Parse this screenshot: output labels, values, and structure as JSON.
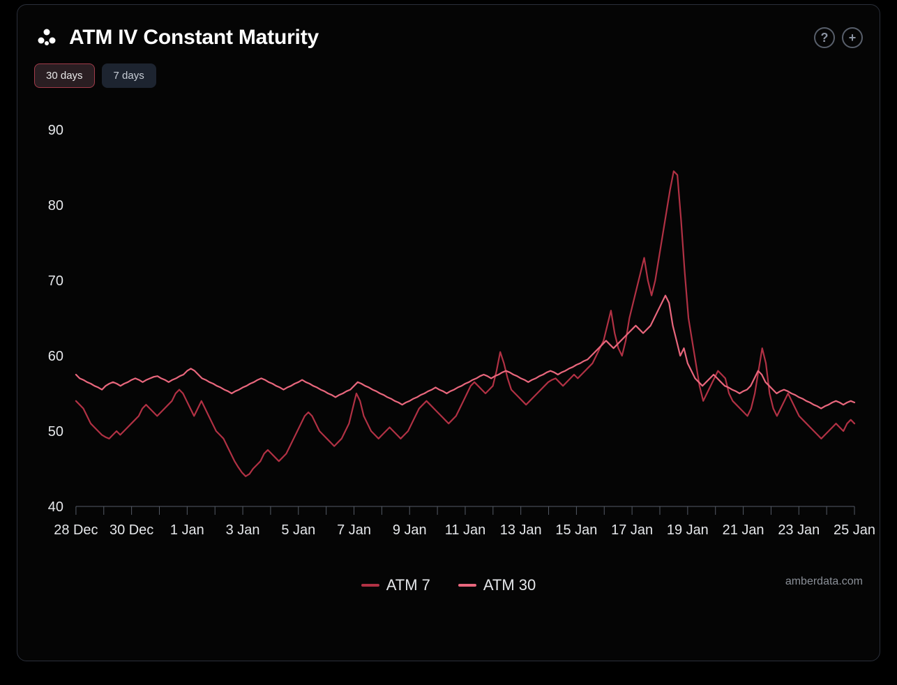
{
  "title": "ATM IV Constant Maturity",
  "tabs": [
    {
      "label": "30 days",
      "active": true
    },
    {
      "label": "7 days",
      "active": false
    }
  ],
  "header_icons": {
    "help": "?",
    "add": "+"
  },
  "watermark": "amberdata.com",
  "chart": {
    "type": "line",
    "background_color": "#050505",
    "axis_color": "#555b66",
    "axis_label_color": "#e5e7ea",
    "axis_label_fontsize": 20,
    "line_width": 2.2,
    "ylim": [
      40,
      90
    ],
    "ytick_step": 10,
    "yticks": [
      40,
      50,
      60,
      70,
      80,
      90
    ],
    "x_categories": [
      "28 Dec",
      "30 Dec",
      "1 Jan",
      "3 Jan",
      "5 Jan",
      "7 Jan",
      "9 Jan",
      "11 Jan",
      "13 Jan",
      "15 Jan",
      "17 Jan",
      "19 Jan",
      "21 Jan",
      "23 Jan",
      "25 Jan"
    ],
    "x_tick_minor_between": 1,
    "legend": [
      {
        "label": "ATM 7",
        "color": "#b13144"
      },
      {
        "label": "ATM 30",
        "color": "#e9677d"
      }
    ],
    "series": [
      {
        "name": "ATM 7",
        "color": "#b13144",
        "values": [
          54,
          53.5,
          53,
          52,
          51,
          50.5,
          50,
          49.5,
          49.2,
          49,
          49.5,
          50,
          49.5,
          50,
          50.5,
          51,
          51.5,
          52,
          53,
          53.5,
          53,
          52.5,
          52,
          52.5,
          53,
          53.5,
          54,
          55,
          55.5,
          55,
          54,
          53,
          52,
          53,
          54,
          53,
          52,
          51,
          50,
          49.5,
          49,
          48,
          47,
          46,
          45.2,
          44.5,
          44,
          44.3,
          45,
          45.5,
          46,
          47,
          47.5,
          47,
          46.5,
          46,
          46.5,
          47,
          48,
          49,
          50,
          51,
          52,
          52.5,
          52,
          51,
          50,
          49.5,
          49,
          48.5,
          48,
          48.5,
          49,
          50,
          51,
          53,
          55,
          54,
          52,
          51,
          50,
          49.5,
          49,
          49.5,
          50,
          50.5,
          50,
          49.5,
          49,
          49.5,
          50,
          51,
          52,
          53,
          53.5,
          54,
          53.5,
          53,
          52.5,
          52,
          51.5,
          51,
          51.5,
          52,
          53,
          54,
          55,
          56,
          56.5,
          56,
          55.5,
          55,
          55.5,
          56,
          58,
          60.5,
          59,
          57,
          55.5,
          55,
          54.5,
          54,
          53.5,
          54,
          54.5,
          55,
          55.5,
          56,
          56.5,
          56.8,
          57,
          56.5,
          56,
          56.5,
          57,
          57.5,
          57,
          57.5,
          58,
          58.5,
          59,
          60,
          61,
          62,
          64,
          66,
          63,
          61,
          60,
          62,
          65,
          67,
          69,
          71,
          73,
          70,
          68,
          70,
          73,
          76,
          79,
          82,
          84.5,
          84,
          78,
          71,
          65,
          62,
          59,
          56,
          54,
          55,
          56,
          57,
          58,
          57.5,
          57,
          55,
          54,
          53.5,
          53,
          52.5,
          52,
          53,
          55,
          58,
          61,
          59,
          55,
          53,
          52,
          53,
          54,
          55,
          54,
          53,
          52,
          51.5,
          51,
          50.5,
          50,
          49.5,
          49,
          49.5,
          50,
          50.5,
          51,
          50.5,
          50,
          51,
          51.5,
          51
        ]
      },
      {
        "name": "ATM 30",
        "color": "#e9677d",
        "values": [
          57.5,
          57,
          56.8,
          56.5,
          56.3,
          56,
          55.8,
          55.5,
          56,
          56.3,
          56.5,
          56.3,
          56,
          56.3,
          56.5,
          56.8,
          57,
          56.8,
          56.5,
          56.8,
          57,
          57.2,
          57.3,
          57,
          56.8,
          56.5,
          56.8,
          57,
          57.3,
          57.5,
          58,
          58.3,
          58,
          57.5,
          57,
          56.8,
          56.5,
          56.3,
          56,
          55.8,
          55.5,
          55.3,
          55,
          55.3,
          55.5,
          55.8,
          56,
          56.3,
          56.5,
          56.8,
          57,
          56.8,
          56.5,
          56.3,
          56,
          55.8,
          55.5,
          55.8,
          56,
          56.3,
          56.5,
          56.8,
          56.5,
          56.3,
          56,
          55.8,
          55.5,
          55.3,
          55,
          54.8,
          54.5,
          54.8,
          55,
          55.3,
          55.5,
          56,
          56.5,
          56.3,
          56,
          55.8,
          55.5,
          55.3,
          55,
          54.8,
          54.5,
          54.3,
          54,
          53.8,
          53.5,
          53.8,
          54,
          54.3,
          54.5,
          54.8,
          55,
          55.3,
          55.5,
          55.8,
          55.5,
          55.3,
          55,
          55.3,
          55.5,
          55.8,
          56,
          56.3,
          56.5,
          56.8,
          57,
          57.3,
          57.5,
          57.3,
          57,
          57.3,
          57.5,
          57.8,
          58,
          57.8,
          57.5,
          57.3,
          57,
          56.8,
          56.5,
          56.8,
          57,
          57.3,
          57.5,
          57.8,
          58,
          57.8,
          57.5,
          57.8,
          58,
          58.3,
          58.5,
          58.8,
          59,
          59.3,
          59.5,
          60,
          60.5,
          61,
          61.5,
          62,
          61.5,
          61,
          61.5,
          62,
          62.5,
          63,
          63.5,
          64,
          63.5,
          63,
          63.5,
          64,
          65,
          66,
          67,
          68,
          67,
          64,
          62,
          60,
          61,
          59,
          58,
          57,
          56.5,
          56,
          56.5,
          57,
          57.5,
          57,
          56.5,
          56,
          55.8,
          55.5,
          55.3,
          55,
          55.3,
          55.5,
          56,
          57,
          58,
          57.5,
          56.5,
          56,
          55.5,
          55,
          55.3,
          55.5,
          55.3,
          55,
          54.8,
          54.5,
          54.3,
          54,
          53.8,
          53.5,
          53.3,
          53,
          53.3,
          53.5,
          53.8,
          54,
          53.8,
          53.5,
          53.8,
          54,
          53.8
        ]
      }
    ]
  }
}
